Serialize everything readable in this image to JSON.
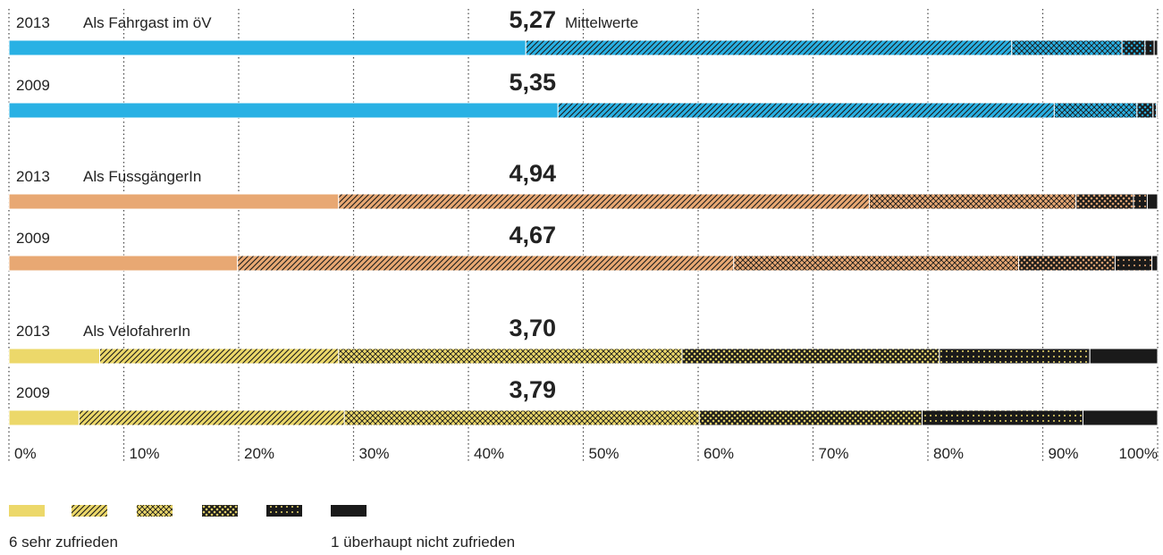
{
  "chart_data": {
    "type": "stacked_bar",
    "mean_title": "Mittelwerte",
    "groups": [
      {
        "label": "Als Fahrgast im öV",
        "color": "#29b1e4",
        "bars": [
          {
            "year": "2013",
            "mean": 5.27,
            "mean_label": "5,27",
            "values": [
              45.0,
              42.3,
              9.6,
              2.0,
              0.8,
              0.3
            ]
          },
          {
            "year": "2009",
            "mean": 5.35,
            "mean_label": "5,35",
            "values": [
              47.8,
              43.2,
              7.2,
              1.4,
              0.3,
              0.1
            ]
          }
        ]
      },
      {
        "label": "Als FussgängerIn",
        "color": "#e8a873",
        "bars": [
          {
            "year": "2013",
            "mean": 4.94,
            "mean_label": "4,94",
            "values": [
              28.7,
              46.2,
              18.0,
              5.0,
              1.2,
              0.9
            ]
          },
          {
            "year": "2009",
            "mean": 4.67,
            "mean_label": "4,67",
            "values": [
              19.9,
              43.2,
              24.8,
              8.4,
              3.2,
              0.5
            ]
          }
        ]
      },
      {
        "label": "Als VelofahrerIn",
        "color": "#ecd86a",
        "bars": [
          {
            "year": "2013",
            "mean": 3.7,
            "mean_label": "3,70",
            "values": [
              7.9,
              20.8,
              29.9,
              22.4,
              13.1,
              5.9
            ]
          },
          {
            "year": "2009",
            "mean": 3.79,
            "mean_label": "3,79",
            "values": [
              6.1,
              23.1,
              30.9,
              19.4,
              14.0,
              6.5
            ]
          }
        ]
      }
    ],
    "xlim": [
      0,
      100
    ],
    "xticks": [
      {
        "value": 0,
        "label": "0%"
      },
      {
        "value": 10,
        "label": "10%"
      },
      {
        "value": 20,
        "label": "20%"
      },
      {
        "value": 30,
        "label": "30%"
      },
      {
        "value": 40,
        "label": "40%"
      },
      {
        "value": 50,
        "label": "50%"
      },
      {
        "value": 60,
        "label": "60%"
      },
      {
        "value": 70,
        "label": "70%"
      },
      {
        "value": 80,
        "label": "80%"
      },
      {
        "value": 90,
        "label": "90%"
      },
      {
        "value": 100,
        "label": "100%"
      }
    ],
    "legend": {
      "color": "#ecd86a",
      "first": "6 sehr zufrieden",
      "last": "1 überhaupt nicht zufrieden"
    }
  }
}
